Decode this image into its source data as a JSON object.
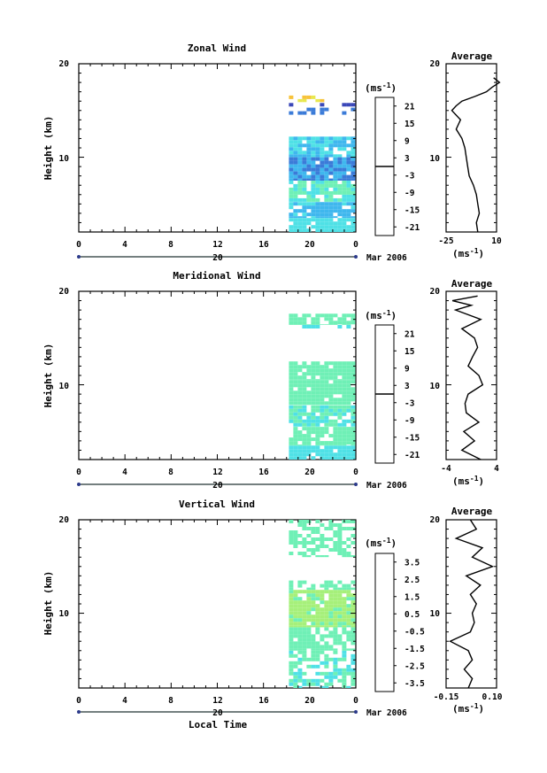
{
  "figure": {
    "xaxis_ticks": [
      "0",
      "4",
      "8",
      "12",
      "16",
      "20",
      "0"
    ],
    "day_label": "20",
    "date_label": "Mar 2006",
    "xlabel": "Local Time",
    "ylabel": "Height (km)",
    "yticks": [
      "20",
      "10"
    ],
    "units_label": "(ms",
    "units_sup": "-1",
    "units_close": ")",
    "avg_title": "Average"
  },
  "chart_data": [
    {
      "type": "heatmap",
      "title": "Zonal Wind",
      "ylabel": "Height (km)",
      "xlabel": "",
      "xlim_hours": [
        0,
        24
      ],
      "ylim_km": [
        2,
        20
      ],
      "colorbar_ticks": [
        "21",
        "15",
        "9",
        "3",
        "-3",
        "-9",
        "-15",
        "-21"
      ],
      "colorbar_range": [
        -24,
        24
      ],
      "data_window_hours": [
        18.2,
        23.8
      ],
      "layers": [
        {
          "h": [
            2.0,
            3.5
          ],
          "value": -6,
          "spread": 3,
          "cover": 0.9
        },
        {
          "h": [
            3.5,
            5.2
          ],
          "value": -9,
          "spread": 3,
          "cover": 0.9
        },
        {
          "h": [
            5.2,
            7.5
          ],
          "value": -4,
          "spread": 4,
          "cover": 0.85
        },
        {
          "h": [
            7.5,
            10.0
          ],
          "value": -12,
          "spread": 3,
          "cover": 0.95
        },
        {
          "h": [
            10.0,
            12.2
          ],
          "value": -8,
          "spread": 3,
          "cover": 0.85
        },
        {
          "h": [
            14.5,
            15.3
          ],
          "value": -14,
          "spread": 4,
          "cover": 0.25
        },
        {
          "h": [
            15.4,
            15.8
          ],
          "value": -18,
          "spread": 3,
          "cover": 0.45
        },
        {
          "h": [
            15.9,
            16.6
          ],
          "value": 9,
          "spread": 8,
          "cover": 0.35
        }
      ],
      "avg_profile": {
        "xlim": [
          -25,
          10
        ],
        "xticks": [
          "-25",
          "10"
        ],
        "height_km": [
          2,
          3,
          4,
          5,
          6,
          7,
          8,
          9,
          10,
          11,
          12,
          13,
          14,
          15,
          15.5,
          16,
          16.5,
          17,
          17.5,
          18,
          18.5
        ],
        "value": [
          -3,
          -4,
          -2,
          -3,
          -4,
          -6,
          -9,
          -10,
          -11,
          -12,
          -14,
          -18,
          -15,
          -21,
          -18,
          -14,
          -5,
          3,
          7,
          12,
          8
        ]
      }
    },
    {
      "type": "heatmap",
      "title": "Meridional Wind",
      "ylabel": "Height (km)",
      "xlabel": "",
      "xlim_hours": [
        0,
        24
      ],
      "ylim_km": [
        2,
        20
      ],
      "colorbar_ticks": [
        "21",
        "15",
        "9",
        "3",
        "-3",
        "-9",
        "-15",
        "-21"
      ],
      "colorbar_range": [
        -24,
        24
      ],
      "data_window_hours": [
        18.2,
        23.8
      ],
      "layers": [
        {
          "h": [
            2.0,
            3.5
          ],
          "value": -5,
          "spread": 2,
          "cover": 0.9
        },
        {
          "h": [
            3.5,
            5.5
          ],
          "value": -2,
          "spread": 3,
          "cover": 0.85
        },
        {
          "h": [
            5.5,
            7.8
          ],
          "value": -4,
          "spread": 3,
          "cover": 0.85
        },
        {
          "h": [
            7.8,
            10.5
          ],
          "value": -3,
          "spread": 2,
          "cover": 0.95
        },
        {
          "h": [
            10.5,
            12.5
          ],
          "value": -2,
          "spread": 2,
          "cover": 0.9
        },
        {
          "h": [
            16.0,
            16.4
          ],
          "value": -5,
          "spread": 2,
          "cover": 0.6
        },
        {
          "h": [
            16.4,
            17.6
          ],
          "value": -3,
          "spread": 2,
          "cover": 0.85
        }
      ],
      "avg_profile": {
        "xlim": [
          -4,
          4
        ],
        "xticks": [
          "-4",
          "4"
        ],
        "height_km": [
          2,
          3,
          4,
          5,
          6,
          7,
          8,
          9,
          10,
          11,
          12,
          13,
          14,
          15,
          16,
          17,
          18,
          18.5,
          19,
          19.5
        ],
        "value": [
          1.5,
          -1.5,
          0.5,
          -1.2,
          1.2,
          -0.8,
          -1,
          -0.5,
          1.8,
          1.2,
          -0.5,
          0.2,
          1,
          0.5,
          -1.5,
          1.5,
          -2.5,
          0,
          -3,
          1
        ]
      }
    },
    {
      "type": "heatmap",
      "title": "Vertical Wind",
      "ylabel": "Height (km)",
      "xlabel": "Local Time",
      "xlim_hours": [
        0,
        24
      ],
      "ylim_km": [
        2,
        20
      ],
      "colorbar_ticks": [
        "3.5",
        "2.5",
        "1.5",
        "0.5",
        "-0.5",
        "-1.5",
        "-2.5",
        "-3.5"
      ],
      "colorbar_range": [
        -4,
        4
      ],
      "data_window_hours": [
        18.2,
        23.8
      ],
      "layers": [
        {
          "h": [
            2.0,
            6.0
          ],
          "value": -0.6,
          "spread": 0.5,
          "cover": 0.6
        },
        {
          "h": [
            6.0,
            8.5
          ],
          "value": -0.3,
          "spread": 0.5,
          "cover": 0.65
        },
        {
          "h": [
            8.5,
            12.5
          ],
          "value": 0.1,
          "spread": 0.4,
          "cover": 0.9
        },
        {
          "h": [
            12.5,
            13.5
          ],
          "value": -0.3,
          "spread": 0.4,
          "cover": 0.6
        },
        {
          "h": [
            16.0,
            20.0
          ],
          "value": -0.2,
          "spread": 0.4,
          "cover": 0.5
        }
      ],
      "avg_profile": {
        "xlim": [
          -0.15,
          0.1
        ],
        "xticks": [
          "-0.15",
          "0.10"
        ],
        "height_km": [
          2,
          3,
          4,
          5,
          6,
          7,
          8,
          9,
          10,
          11,
          12,
          13,
          14,
          15,
          16,
          17,
          18,
          19,
          20
        ],
        "value": [
          -0.04,
          -0.02,
          -0.06,
          -0.02,
          -0.04,
          -0.13,
          -0.03,
          -0.01,
          -0.02,
          0.0,
          -0.03,
          0.02,
          -0.05,
          0.08,
          -0.02,
          0.03,
          -0.1,
          0.0,
          -0.03
        ]
      }
    }
  ]
}
